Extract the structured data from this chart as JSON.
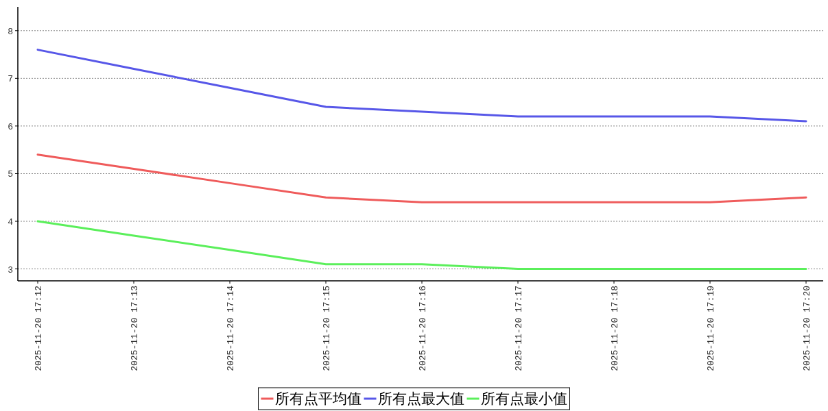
{
  "chart_data": {
    "type": "line",
    "categories": [
      "2025-11-20 17:12",
      "2025-11-20 17:13",
      "2025-11-20 17:14",
      "2025-11-20 17:15",
      "2025-11-20 17:16",
      "2025-11-20 17:17",
      "2025-11-20 17:18",
      "2025-11-20 17:19",
      "2025-11-20 17:20"
    ],
    "series": [
      {
        "name": "所有点平均值",
        "color": "#ef5b5b",
        "values": [
          5.4,
          5.1,
          4.8,
          4.5,
          4.4,
          4.4,
          4.4,
          4.4,
          4.5
        ]
      },
      {
        "name": "所有点最大值",
        "color": "#5757e8",
        "values": [
          7.6,
          7.2,
          6.8,
          6.4,
          6.3,
          6.2,
          6.2,
          6.2,
          6.1
        ]
      },
      {
        "name": "所有点最小值",
        "color": "#5bef5b",
        "values": [
          4.0,
          3.7,
          3.4,
          3.1,
          3.1,
          3.0,
          3.0,
          3.0,
          3.0
        ]
      }
    ],
    "ylim": [
      2.75,
      8.5
    ],
    "yticks": [
      3,
      4,
      5,
      6,
      7,
      8
    ],
    "grid": "y",
    "legend": "bottom",
    "marker": "none",
    "line_style": "solid"
  }
}
